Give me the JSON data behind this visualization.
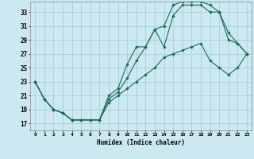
{
  "xlabel": "Humidex (Indice chaleur)",
  "bg_color": "#cce8f0",
  "grid_color": "#a8d0da",
  "line_color": "#1a6b5a",
  "xlim": [
    -0.5,
    23.5
  ],
  "ylim": [
    16.0,
    34.5
  ],
  "xticks": [
    0,
    1,
    2,
    3,
    4,
    5,
    6,
    7,
    8,
    9,
    10,
    11,
    12,
    13,
    14,
    15,
    16,
    17,
    18,
    19,
    20,
    21,
    22,
    23
  ],
  "yticks": [
    17,
    19,
    21,
    23,
    25,
    27,
    29,
    31,
    33
  ],
  "curve1_x": [
    0,
    1,
    2,
    3,
    4,
    5,
    6,
    7,
    8,
    9,
    10,
    11,
    12,
    13,
    14,
    15,
    16,
    17,
    18,
    19,
    20,
    21,
    22,
    23
  ],
  "curve1_y": [
    23,
    20.5,
    19,
    18.5,
    17.5,
    17.5,
    17.5,
    17.5,
    20.5,
    21.5,
    23.5,
    26,
    28,
    30.5,
    31,
    34,
    34.5,
    34.5,
    34.5,
    34,
    33,
    29,
    28.5,
    27
  ],
  "curve2_x": [
    0,
    1,
    2,
    3,
    4,
    5,
    6,
    7,
    8,
    9,
    10,
    11,
    12,
    13,
    14,
    15,
    16,
    17,
    18,
    19,
    20,
    21,
    22,
    23
  ],
  "curve2_y": [
    23,
    20.5,
    19,
    18.5,
    17.5,
    17.5,
    17.5,
    17.5,
    21,
    22,
    25.5,
    28,
    28,
    30.5,
    28,
    32.5,
    34,
    34,
    34,
    33,
    33,
    30,
    28.5,
    27
  ],
  "curve3_x": [
    0,
    1,
    2,
    3,
    4,
    5,
    6,
    7,
    8,
    9,
    10,
    11,
    12,
    13,
    14,
    15,
    16,
    17,
    18,
    19,
    20,
    21,
    22,
    23
  ],
  "curve3_y": [
    23,
    20.5,
    19,
    18.5,
    17.5,
    17.5,
    17.5,
    17.5,
    20,
    21,
    22,
    23,
    24,
    25,
    26.5,
    27,
    27.5,
    28,
    28.5,
    26,
    25,
    24,
    25,
    27
  ]
}
